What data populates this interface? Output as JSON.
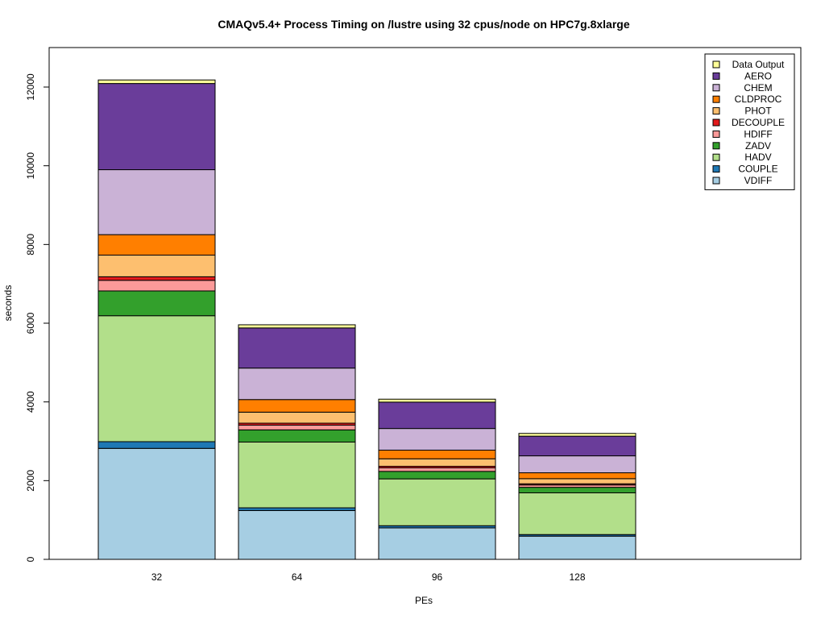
{
  "chart_data": {
    "type": "bar",
    "stacked": true,
    "title": "CMAQv5.4+ Process Timing on /lustre using 32 cpus/node on HPC7g.8xlarge",
    "xlabel": "PEs",
    "ylabel": "seconds",
    "ylim": [
      0,
      13000
    ],
    "yticks": [
      0,
      2000,
      4000,
      6000,
      8000,
      10000,
      12000
    ],
    "grid": false,
    "legend_position": "top-right",
    "categories": [
      "32",
      "64",
      "96",
      "128"
    ],
    "series": [
      {
        "name": "VDIFF",
        "color": "#a6cee3",
        "values": [
          2820,
          1240,
          800,
          590
        ]
      },
      {
        "name": "COUPLE",
        "color": "#1f78b4",
        "values": [
          170,
          70,
          55,
          40
        ]
      },
      {
        "name": "HADV",
        "color": "#b2df8a",
        "values": [
          3200,
          1670,
          1190,
          1060
        ]
      },
      {
        "name": "ZADV",
        "color": "#33a02c",
        "values": [
          630,
          310,
          190,
          140
        ]
      },
      {
        "name": "HDIFF",
        "color": "#fb9a99",
        "values": [
          270,
          120,
          90,
          60
        ]
      },
      {
        "name": "DECOUPLE",
        "color": "#e31a1c",
        "values": [
          90,
          50,
          40,
          30
        ]
      },
      {
        "name": "PHOT",
        "color": "#fdbf6f",
        "values": [
          550,
          280,
          190,
          130
        ]
      },
      {
        "name": "CLDPROC",
        "color": "#ff7f00",
        "values": [
          520,
          320,
          220,
          150
        ]
      },
      {
        "name": "CHEM",
        "color": "#cab2d6",
        "values": [
          1650,
          800,
          550,
          430
        ]
      },
      {
        "name": "AERO",
        "color": "#6a3d9a",
        "values": [
          2190,
          1020,
          670,
          500
        ]
      },
      {
        "name": "Data Output",
        "color": "#ffff99",
        "values": [
          90,
          80,
          75,
          70
        ]
      }
    ]
  }
}
